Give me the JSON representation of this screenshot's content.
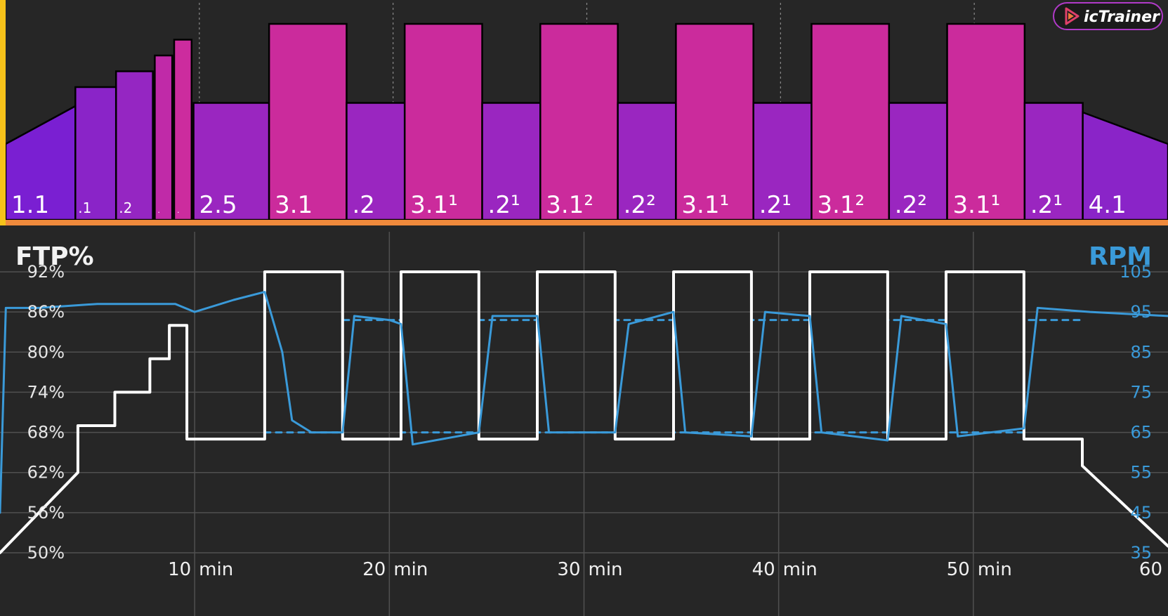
{
  "brand": {
    "name": "icTrainer",
    "icon": "play-logo-icon"
  },
  "workout_profile": {
    "segments": [
      {
        "label": "1.1",
        "start": 0,
        "end": 3.6,
        "from": 54,
        "to": 66,
        "color": "#7a1fd2"
      },
      {
        "label": ".1",
        "start": 3.6,
        "end": 5.7,
        "from": 72,
        "to": 72,
        "color": "#8a24c8"
      },
      {
        "label": ".2",
        "start": 5.7,
        "end": 7.6,
        "from": 77,
        "to": 77,
        "color": "#9526c2"
      },
      {
        "label": ".",
        "start": 7.7,
        "end": 8.6,
        "from": 82,
        "to": 82,
        "color": "#c02aa8"
      },
      {
        "label": ".",
        "start": 8.7,
        "end": 9.6,
        "from": 87,
        "to": 87,
        "color": "#cc2c9e"
      },
      {
        "label": "2.5",
        "start": 9.7,
        "end": 13.6,
        "from": 67,
        "to": 67,
        "color": "#9a26c0"
      },
      {
        "label": "3.1",
        "start": 13.6,
        "end": 17.6,
        "from": 92,
        "to": 92,
        "color": "#cb2b9c"
      },
      {
        "label": ".2",
        "start": 17.6,
        "end": 20.6,
        "from": 67,
        "to": 67,
        "color": "#9a26c0"
      },
      {
        "label": "3.1¹",
        "start": 20.6,
        "end": 24.6,
        "from": 92,
        "to": 92,
        "color": "#cb2b9c"
      },
      {
        "label": ".2¹",
        "start": 24.6,
        "end": 27.6,
        "from": 67,
        "to": 67,
        "color": "#9a26c0"
      },
      {
        "label": "3.1²",
        "start": 27.6,
        "end": 31.6,
        "from": 92,
        "to": 92,
        "color": "#cb2b9c"
      },
      {
        "label": ".2²",
        "start": 31.6,
        "end": 34.6,
        "from": 67,
        "to": 67,
        "color": "#9a26c0"
      },
      {
        "label": "3.1¹",
        "start": 34.6,
        "end": 38.6,
        "from": 92,
        "to": 92,
        "color": "#cb2b9c"
      },
      {
        "label": ".2¹",
        "start": 38.6,
        "end": 41.6,
        "from": 67,
        "to": 67,
        "color": "#9a26c0"
      },
      {
        "label": "3.1²",
        "start": 41.6,
        "end": 45.6,
        "from": 92,
        "to": 92,
        "color": "#cb2b9c"
      },
      {
        "label": ".2²",
        "start": 45.6,
        "end": 48.6,
        "from": 67,
        "to": 67,
        "color": "#9a26c0"
      },
      {
        "label": "3.1¹",
        "start": 48.6,
        "end": 52.6,
        "from": 92,
        "to": 92,
        "color": "#cb2b9c"
      },
      {
        "label": ".2¹",
        "start": 52.6,
        "end": 55.6,
        "from": 67,
        "to": 67,
        "color": "#9a26c0"
      },
      {
        "label": "4.1",
        "start": 55.6,
        "end": 60,
        "from": 64,
        "to": 54,
        "color": "#8a24c8"
      }
    ],
    "colors": {
      "background": "#262626",
      "progress_bar": "#f08a3c",
      "edge_marker": "#f6c21a"
    }
  },
  "chart_data": {
    "type": "line",
    "title_left": "FTP%",
    "title_right": "RPM",
    "x": {
      "min": 0,
      "max": 60,
      "ticks": [
        10,
        20,
        30,
        40,
        50,
        60
      ],
      "unit_label": "min"
    },
    "y_left": {
      "min": 50,
      "max": 92,
      "ticks": [
        "92%",
        "86%",
        "80%",
        "74%",
        "68%",
        "62%",
        "56%",
        "50%"
      ]
    },
    "y_right": {
      "min": 35,
      "max": 105,
      "ticks": [
        "105",
        "95",
        "85",
        "75",
        "65",
        "55",
        "45",
        "35"
      ]
    },
    "grid": true,
    "series": [
      {
        "axis": "left",
        "color": "#ffffff",
        "points": [
          [
            0,
            50
          ],
          [
            4,
            62
          ],
          [
            4,
            69
          ],
          [
            5.9,
            69
          ],
          [
            5.9,
            74
          ],
          [
            7.7,
            74
          ],
          [
            7.7,
            79
          ],
          [
            8.7,
            79
          ],
          [
            8.7,
            84
          ],
          [
            9.6,
            84
          ],
          [
            9.6,
            67
          ],
          [
            13.6,
            67
          ],
          [
            13.6,
            92
          ],
          [
            17.6,
            92
          ],
          [
            17.6,
            67
          ],
          [
            20.6,
            67
          ],
          [
            20.6,
            92
          ],
          [
            24.6,
            92
          ],
          [
            24.6,
            67
          ],
          [
            27.6,
            67
          ],
          [
            27.6,
            92
          ],
          [
            31.6,
            92
          ],
          [
            31.6,
            67
          ],
          [
            34.6,
            67
          ],
          [
            34.6,
            92
          ],
          [
            38.6,
            92
          ],
          [
            38.6,
            67
          ],
          [
            41.6,
            67
          ],
          [
            41.6,
            92
          ],
          [
            45.6,
            92
          ],
          [
            45.6,
            67
          ],
          [
            48.6,
            67
          ],
          [
            48.6,
            92
          ],
          [
            52.6,
            92
          ],
          [
            52.6,
            67
          ],
          [
            55.6,
            67
          ],
          [
            55.6,
            63
          ],
          [
            60,
            51
          ]
        ]
      },
      {
        "axis": "right",
        "color": "#3a9ad9",
        "points": [
          [
            0,
            45
          ],
          [
            0.3,
            96
          ],
          [
            2,
            96
          ],
          [
            5,
            97
          ],
          [
            9,
            97
          ],
          [
            10,
            95
          ],
          [
            12,
            98
          ],
          [
            13.6,
            100
          ],
          [
            14.5,
            85
          ],
          [
            15,
            68
          ],
          [
            16,
            65
          ],
          [
            17.6,
            65
          ],
          [
            18.2,
            94
          ],
          [
            20,
            93
          ],
          [
            20.6,
            92
          ],
          [
            21.2,
            62
          ],
          [
            24.6,
            65
          ],
          [
            25.3,
            94
          ],
          [
            27.6,
            94
          ],
          [
            28.2,
            65
          ],
          [
            31.6,
            65
          ],
          [
            32.3,
            92
          ],
          [
            34.6,
            95
          ],
          [
            35.2,
            65
          ],
          [
            38.6,
            64
          ],
          [
            39.3,
            95
          ],
          [
            41.6,
            94
          ],
          [
            42.2,
            65
          ],
          [
            45.6,
            63
          ],
          [
            46.3,
            94
          ],
          [
            48.6,
            92
          ],
          [
            49.2,
            64
          ],
          [
            52.6,
            66
          ],
          [
            53.3,
            96
          ],
          [
            56,
            95
          ],
          [
            60,
            94
          ]
        ]
      },
      {
        "axis": "right",
        "color": "#3a9ad9",
        "dashed": true,
        "points": [
          [
            13.6,
            65
          ],
          [
            17.6,
            65
          ],
          [
            17.6,
            93
          ],
          [
            20.6,
            93
          ],
          [
            20.6,
            65
          ],
          [
            24.6,
            65
          ],
          [
            24.6,
            93
          ],
          [
            27.6,
            93
          ],
          [
            27.6,
            65
          ],
          [
            31.6,
            65
          ],
          [
            31.6,
            93
          ],
          [
            34.6,
            93
          ],
          [
            34.6,
            65
          ],
          [
            38.6,
            65
          ],
          [
            38.6,
            93
          ],
          [
            41.6,
            93
          ],
          [
            41.6,
            65
          ],
          [
            45.6,
            65
          ],
          [
            45.6,
            93
          ],
          [
            48.6,
            93
          ],
          [
            48.6,
            65
          ],
          [
            52.6,
            65
          ],
          [
            52.6,
            93
          ],
          [
            55.6,
            93
          ]
        ]
      }
    ]
  }
}
